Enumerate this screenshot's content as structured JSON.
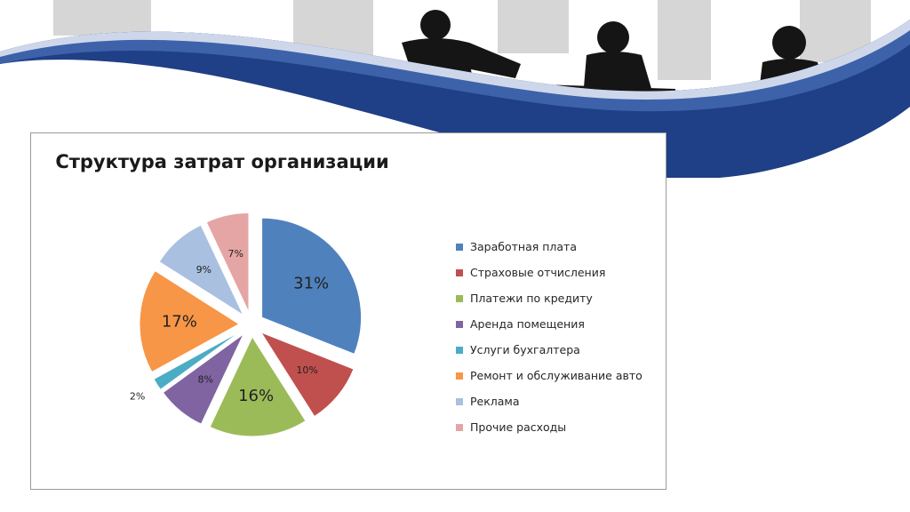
{
  "chart_data": {
    "type": "pie",
    "title": "Структура затрат организации",
    "categories": [
      "Заработная плата",
      "Страховые отчисления",
      "Платежи по кредиту",
      "Аренда помещения",
      "Услуги бухгалтера",
      "Ремонт и обслуживание авто",
      "Реклама",
      "Прочие расходы"
    ],
    "values": [
      31,
      10,
      16,
      8,
      2,
      17,
      9,
      7
    ],
    "data_labels": [
      "31%",
      "10%",
      "16%",
      "8%",
      "2%",
      "17%",
      "9%",
      "7%"
    ],
    "colors": [
      "#4f81bd",
      "#c0504d",
      "#9bbb59",
      "#8064a2",
      "#4bacc6",
      "#f79646",
      "#a9c0e0",
      "#e5a5a4"
    ],
    "exploded": true,
    "legend_position": "right"
  },
  "decor": {
    "wave_colors": [
      "#1f3f86",
      "#3d62aa",
      "#6f8fc6"
    ],
    "silhouette_color": "#151515"
  }
}
